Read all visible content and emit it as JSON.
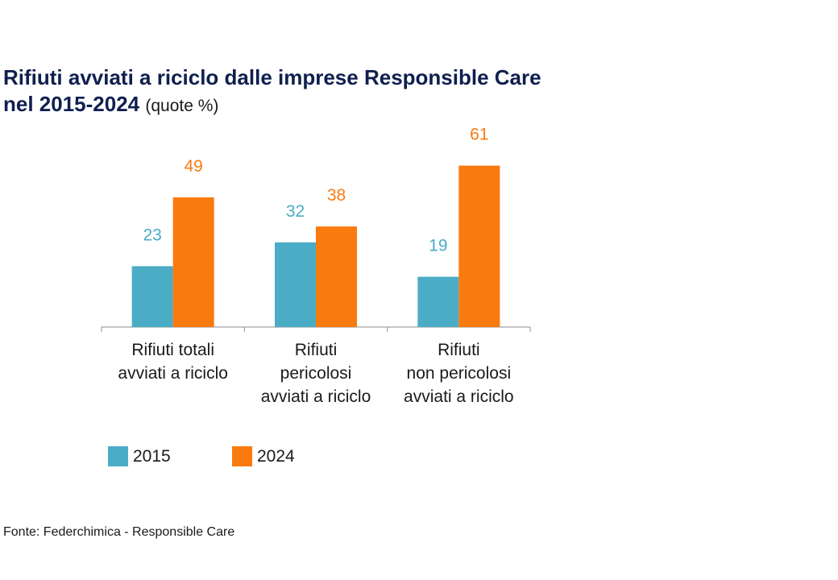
{
  "title": {
    "line1": "Rifiuti avviati a riciclo dalle imprese Responsible Care",
    "line2": "nel 2015-2024",
    "unit": "(quote %)"
  },
  "source": "Fonte: Federchimica - Responsible Care",
  "chart_data": {
    "type": "bar",
    "title": "Rifiuti avviati a riciclo dalle imprese Responsible Care nel 2015-2024 (quote %)",
    "categories": [
      [
        "Rifiuti totali",
        "avviati a riciclo"
      ],
      [
        "Rifiuti",
        "pericolosi",
        "avviati a riciclo"
      ],
      [
        "Rifiuti",
        "non pericolosi",
        "avviati a riciclo"
      ]
    ],
    "series": [
      {
        "name": "2015",
        "values": [
          23,
          32,
          19
        ],
        "color": "#4bacc6"
      },
      {
        "name": "2024",
        "values": [
          49,
          38,
          61
        ],
        "color": "#f97b10"
      }
    ],
    "ylim": [
      0,
      70
    ],
    "grid": false,
    "data_labels": true,
    "legend_position": "bottom-left"
  }
}
